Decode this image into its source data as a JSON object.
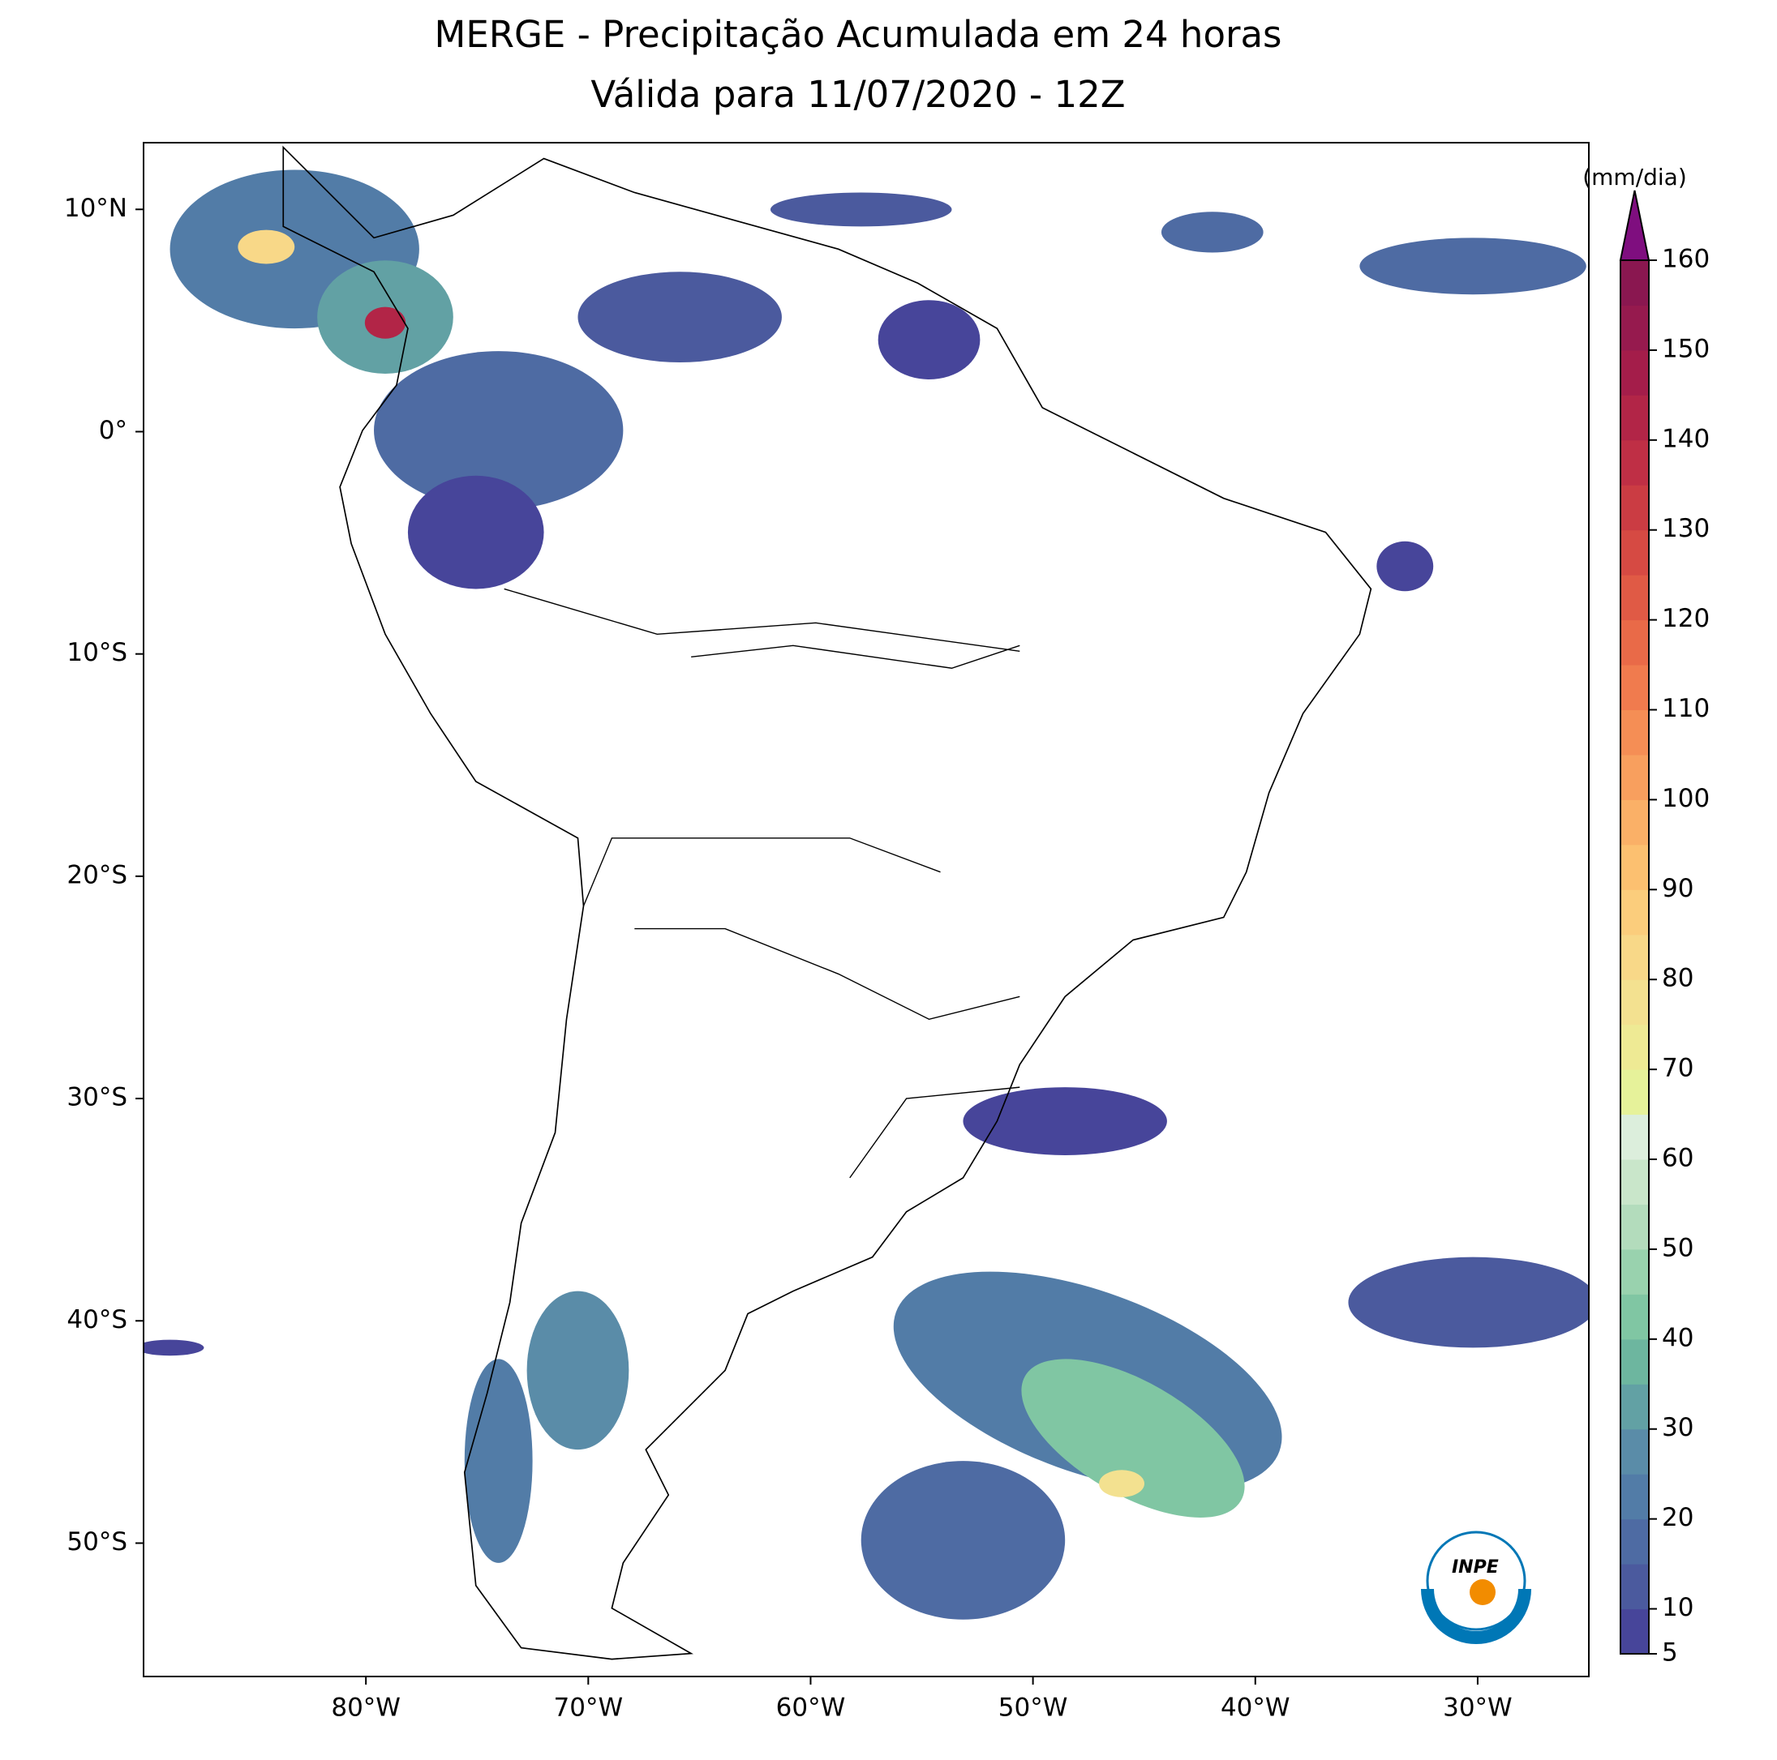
{
  "title": "MERGE - Precipitação Acumulada em 24 horas",
  "subtitle": "Válida para 11/07/2020 - 12Z",
  "map": {
    "lonlim": [
      -90,
      -25
    ],
    "latlim": [
      -56,
      13
    ],
    "lon_ticks": [
      {
        "value": -80,
        "label": "80°W"
      },
      {
        "value": -70,
        "label": "70°W"
      },
      {
        "value": -60,
        "label": "60°W"
      },
      {
        "value": -50,
        "label": "50°W"
      },
      {
        "value": -40,
        "label": "40°W"
      },
      {
        "value": -30,
        "label": "30°W"
      }
    ],
    "lat_ticks": [
      {
        "value": 10,
        "label": "10°N"
      },
      {
        "value": 0,
        "label": "0°"
      },
      {
        "value": -10,
        "label": "10°S"
      },
      {
        "value": -20,
        "label": "20°S"
      },
      {
        "value": -30,
        "label": "30°S"
      },
      {
        "value": -40,
        "label": "40°S"
      },
      {
        "value": -50,
        "label": "50°S"
      }
    ]
  },
  "colorbar": {
    "label": "(mm/dia)",
    "range": [
      5,
      160
    ],
    "ticks": [
      5,
      10,
      20,
      30,
      40,
      50,
      60,
      70,
      80,
      90,
      100,
      110,
      120,
      130,
      140,
      150,
      160
    ],
    "colors": [
      "#47459a",
      "#4b5a9e",
      "#4e6ba3",
      "#527ca7",
      "#5a8ca8",
      "#62a1a4",
      "#6db69f",
      "#80c6a3",
      "#99d2ae",
      "#b3dcbc",
      "#c9e6ca",
      "#dceedc",
      "#e6f29a",
      "#eeea94",
      "#f3e190",
      "#f8d888",
      "#fbcd7c",
      "#fcc070",
      "#fab067",
      "#f89f5e",
      "#f58e55",
      "#f07b4e",
      "#e96a48",
      "#e05a45",
      "#d64a43",
      "#cb3c43",
      "#bf2f45",
      "#b22547",
      "#a41d4a",
      "#961a4e",
      "#8a1750"
    ],
    "extend_color": "#7f0e7f"
  },
  "logo": "INPE"
}
